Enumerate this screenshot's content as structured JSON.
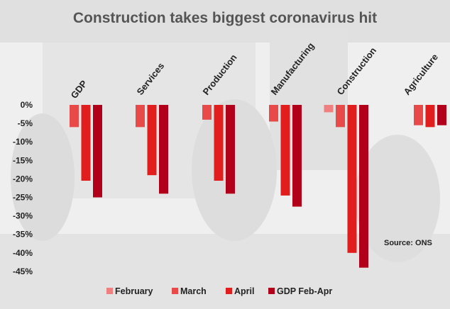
{
  "chart_data": {
    "type": "bar",
    "title": "Construction takes biggest coronavirus hit",
    "source": "Source: ONS",
    "categories": [
      "GDP",
      "Services",
      "Production",
      "Manufacturing",
      "Construction",
      "Agriculture"
    ],
    "series": [
      {
        "name": "February",
        "color": "#f08080",
        "values": [
          0,
          0,
          0,
          0,
          -2,
          0
        ]
      },
      {
        "name": "March",
        "color": "#e84a4a",
        "values": [
          -6,
          -6,
          -4,
          -4.5,
          -6,
          -5.5
        ]
      },
      {
        "name": "April",
        "color": "#e21d1d",
        "values": [
          -20.5,
          -19,
          -20.5,
          -24.5,
          -40,
          -6
        ]
      },
      {
        "name": "GDP Feb-Apr",
        "color": "#b3001a",
        "values": [
          -25,
          -24,
          -24,
          -27.5,
          -44,
          -5.5
        ]
      }
    ],
    "yticks": [
      "0%",
      "-5%",
      "-10%",
      "-15%",
      "-20%",
      "-25%",
      "-30%",
      "-35%",
      "-40%",
      "-45%"
    ],
    "ylim": [
      -45,
      0
    ],
    "grid": false,
    "legend_position": "bottom"
  }
}
